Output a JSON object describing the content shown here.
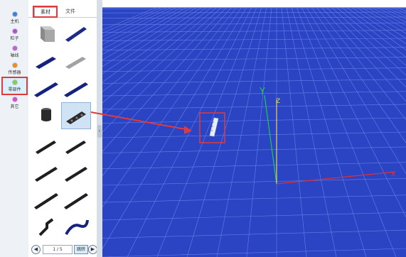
{
  "categories": [
    {
      "label": "主机",
      "color": "#3a7fd5"
    },
    {
      "label": "粒子",
      "color": "#b44bd3"
    },
    {
      "label": "轴线",
      "color": "#c65ed7"
    },
    {
      "label": "传感器",
      "color": "#f08a1c"
    },
    {
      "label": "零部件",
      "color": "#7bd34a"
    },
    {
      "label": "其它",
      "color": "#d94bd3"
    }
  ],
  "tabs": {
    "material": "素材",
    "file": "文件"
  },
  "pager": {
    "prev": "◀",
    "page": "1 / 5",
    "jump": "跳转",
    "next": "▶"
  },
  "viewport": {
    "axis_y_label": "Y",
    "axis_z_label": "Z",
    "axis_x_label": "X",
    "axis_y_color": "#22c84a",
    "axis_z_color": "#e3d36a",
    "axis_x_color": "#e23030",
    "grid_color": "#7f95ee",
    "background": "#2a44c4"
  },
  "highlight_color": "#e23a3a"
}
